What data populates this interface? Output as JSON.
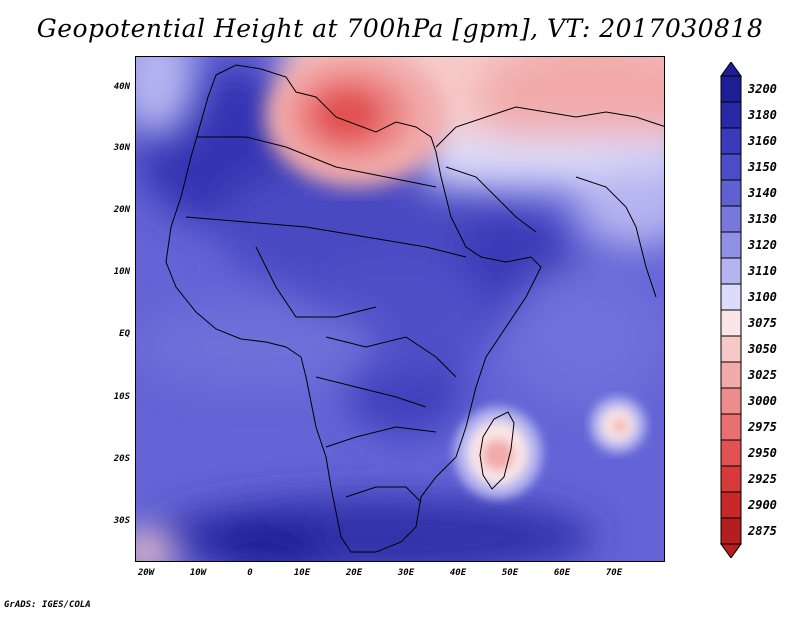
{
  "title": "Geopotential Height at 700hPa [gpm], VT: 2017030818",
  "credit": "GrADS: IGES/COLA",
  "map": {
    "lat_labels": [
      "40N",
      "30N",
      "20N",
      "10N",
      "EQ",
      "10S",
      "20S",
      "30S"
    ],
    "lon_labels": [
      "20W",
      "10W",
      "0",
      "10E",
      "20E",
      "30E",
      "40E",
      "50E",
      "60E",
      "70E"
    ]
  },
  "colorbar": {
    "levels": [
      "3200",
      "3180",
      "3160",
      "3150",
      "3140",
      "3130",
      "3120",
      "3110",
      "3100",
      "3075",
      "3050",
      "3025",
      "3000",
      "2975",
      "2950",
      "2925",
      "2900",
      "2875"
    ],
    "colors": [
      "#1e1e96",
      "#2828a8",
      "#3a3abc",
      "#4c4cc8",
      "#6060d2",
      "#7878dc",
      "#9090e6",
      "#b4b4f0",
      "#dcdcfa",
      "#fae6e6",
      "#f6c8c8",
      "#f2aaaa",
      "#ee8c8c",
      "#e87070",
      "#e25252",
      "#d83a3a",
      "#c82828",
      "#b41e1e"
    ]
  }
}
